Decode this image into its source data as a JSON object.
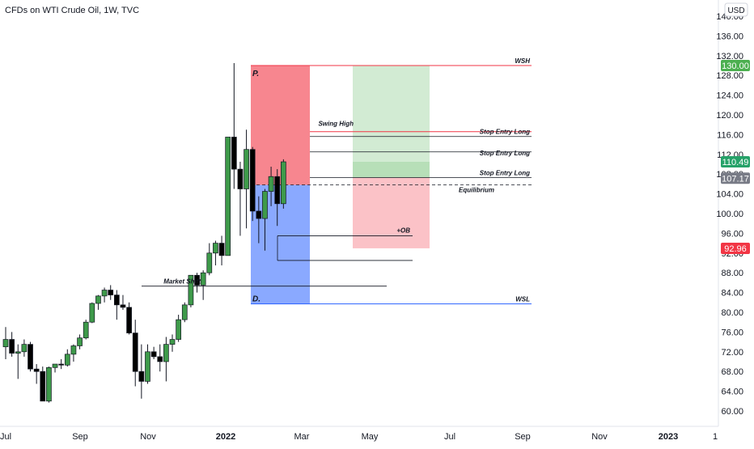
{
  "chart_data": {
    "type": "candlestick",
    "title": "CFDs on WTI Crude Oil, 1W, TVC",
    "currency": "USD",
    "y_ticks": [
      60,
      64,
      68,
      72,
      76,
      80,
      84,
      88,
      92,
      96,
      100,
      104,
      108,
      112,
      116,
      120,
      124,
      128,
      132,
      136,
      140
    ],
    "x_ticks": [
      "Jul",
      "Sep",
      "Nov",
      "2022",
      "Mar",
      "May",
      "Jul",
      "Sep",
      "Nov",
      "2023",
      "1"
    ],
    "candles": [
      {
        "o": 73.0,
        "h": 77.0,
        "l": 70.5,
        "c": 74.5
      },
      {
        "o": 74.5,
        "h": 76.0,
        "l": 71.0,
        "c": 71.7
      },
      {
        "o": 71.7,
        "h": 73.5,
        "l": 66.5,
        "c": 72.0
      },
      {
        "o": 72.0,
        "h": 74.5,
        "l": 71.0,
        "c": 73.5
      },
      {
        "o": 73.5,
        "h": 74.0,
        "l": 68.0,
        "c": 68.5
      },
      {
        "o": 68.5,
        "h": 69.5,
        "l": 65.5,
        "c": 68.0
      },
      {
        "o": 68.0,
        "h": 69.0,
        "l": 62.0,
        "c": 62.0
      },
      {
        "o": 62.0,
        "h": 69.0,
        "l": 61.7,
        "c": 68.8
      },
      {
        "o": 68.8,
        "h": 69.5,
        "l": 67.8,
        "c": 69.5
      },
      {
        "o": 69.5,
        "h": 70.5,
        "l": 68.5,
        "c": 69.3
      },
      {
        "o": 69.3,
        "h": 72.5,
        "l": 69.0,
        "c": 71.5
      },
      {
        "o": 71.5,
        "h": 73.5,
        "l": 70.0,
        "c": 73.2
      },
      {
        "o": 73.2,
        "h": 75.5,
        "l": 72.5,
        "c": 74.8
      },
      {
        "o": 74.8,
        "h": 78.5,
        "l": 74.5,
        "c": 78.0
      },
      {
        "o": 78.0,
        "h": 82.0,
        "l": 77.8,
        "c": 81.8
      },
      {
        "o": 81.8,
        "h": 83.5,
        "l": 80.5,
        "c": 83.3
      },
      {
        "o": 83.3,
        "h": 85.0,
        "l": 82.0,
        "c": 84.5
      },
      {
        "o": 84.5,
        "h": 85.5,
        "l": 82.5,
        "c": 83.5
      },
      {
        "o": 83.5,
        "h": 84.5,
        "l": 78.5,
        "c": 81.5
      },
      {
        "o": 81.5,
        "h": 83.5,
        "l": 80.5,
        "c": 81.0
      },
      {
        "o": 81.0,
        "h": 82.0,
        "l": 75.5,
        "c": 75.8
      },
      {
        "o": 75.8,
        "h": 78.5,
        "l": 65.0,
        "c": 68.0
      },
      {
        "o": 68.0,
        "h": 73.5,
        "l": 62.5,
        "c": 66.0
      },
      {
        "o": 66.0,
        "h": 73.5,
        "l": 65.5,
        "c": 72.0
      },
      {
        "o": 72.0,
        "h": 73.0,
        "l": 70.5,
        "c": 71.0
      },
      {
        "o": 71.0,
        "h": 73.5,
        "l": 68.0,
        "c": 70.0
      },
      {
        "o": 70.0,
        "h": 75.0,
        "l": 66.0,
        "c": 73.5
      },
      {
        "o": 73.5,
        "h": 75.5,
        "l": 72.0,
        "c": 74.5
      },
      {
        "o": 74.5,
        "h": 79.5,
        "l": 74.0,
        "c": 78.5
      },
      {
        "o": 78.5,
        "h": 82.0,
        "l": 78.0,
        "c": 81.5
      },
      {
        "o": 81.5,
        "h": 87.5,
        "l": 81.0,
        "c": 87.5
      },
      {
        "o": 87.5,
        "h": 88.0,
        "l": 84.0,
        "c": 85.5
      },
      {
        "o": 85.5,
        "h": 88.5,
        "l": 82.5,
        "c": 88.0
      },
      {
        "o": 88.0,
        "h": 94.0,
        "l": 87.5,
        "c": 92.0
      },
      {
        "o": 92.0,
        "h": 94.5,
        "l": 89.5,
        "c": 94.0
      },
      {
        "o": 94.0,
        "h": 95.5,
        "l": 89.5,
        "c": 91.5
      },
      {
        "o": 91.5,
        "h": 115.0,
        "l": 91.5,
        "c": 115.5
      },
      {
        "o": 115.5,
        "h": 130.5,
        "l": 105.0,
        "c": 109.0
      },
      {
        "o": 109.0,
        "h": 110.5,
        "l": 95.5,
        "c": 105.0
      },
      {
        "o": 105.0,
        "h": 117.0,
        "l": 97.0,
        "c": 113.0
      },
      {
        "o": 113.0,
        "h": 113.5,
        "l": 98.5,
        "c": 100.5
      },
      {
        "o": 100.5,
        "h": 103.5,
        "l": 94.0,
        "c": 99.0
      },
      {
        "o": 99.0,
        "h": 105.0,
        "l": 92.5,
        "c": 104.5
      },
      {
        "o": 104.5,
        "h": 109.5,
        "l": 101.5,
        "c": 107.5
      },
      {
        "o": 107.5,
        "h": 109.0,
        "l": 97.5,
        "c": 102.0
      },
      {
        "o": 102.0,
        "h": 111.0,
        "l": 101.0,
        "c": 110.49
      }
    ],
    "levels": [
      {
        "label": "WSH",
        "price": 130.0,
        "color": "#f23645"
      },
      {
        "label": "Swing High",
        "price": 116.6,
        "color": "#f23645"
      },
      {
        "label": "Stop Entry Long",
        "price": 116.6,
        "color": "#f23645"
      },
      {
        "label": "Stop Entry Long",
        "price": 112.5,
        "color": "#131722"
      },
      {
        "label": "Stop Entry Long",
        "price": 107.3,
        "color": "#131722"
      },
      {
        "label": "Equilibrium",
        "price": 105.8,
        "color": "#131722"
      },
      {
        "label": "+OB",
        "price": 95.5,
        "color": "#131722"
      },
      {
        "label": "Market Shift",
        "price": 85.3,
        "color": "#131722"
      },
      {
        "label": "WSL",
        "price": 81.7,
        "color": "#2962ff"
      }
    ],
    "zones": [
      {
        "label": "P.",
        "from": 105.8,
        "to": 130.0,
        "color": "#f23645"
      },
      {
        "label": "D.",
        "from": 81.7,
        "to": 105.8,
        "color": "#2962ff"
      }
    ],
    "price_labels": [
      {
        "text": "130.00",
        "price": 130.0,
        "color": "#4caf50"
      },
      {
        "text": "110.49",
        "price": 110.49,
        "color": "#26a269"
      },
      {
        "text": "107.17",
        "price": 107.17,
        "color": "#787b86"
      },
      {
        "text": "92.96",
        "price": 92.96,
        "color": "#f23645"
      }
    ],
    "colors": {
      "up": "#3e9a4a",
      "down": "#000000"
    }
  }
}
